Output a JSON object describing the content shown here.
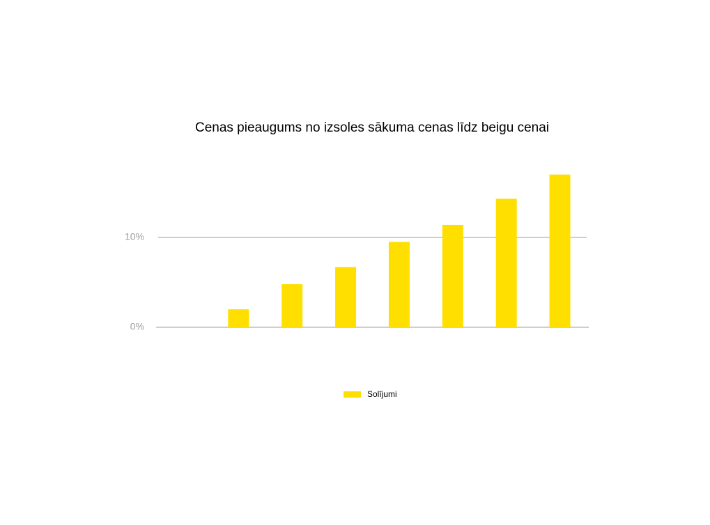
{
  "chart_data": {
    "type": "bar",
    "title": "Cenas pieaugums no izsoles sākuma cenas līdz beigu cenai",
    "categories": [
      null,
      null,
      null,
      null,
      null,
      null,
      null,
      null
    ],
    "series": [
      {
        "name": "Solījumi",
        "color": "#ffdf00",
        "values": [
          0,
          2,
          4.8,
          6.7,
          9.5,
          11.4,
          14.3,
          17
        ]
      }
    ],
    "ylim": [
      0,
      20
    ],
    "yticks": [
      {
        "value": 0,
        "label": "0%"
      },
      {
        "value": 10,
        "label": "10%"
      }
    ],
    "grid": true,
    "legend": "bottom"
  }
}
